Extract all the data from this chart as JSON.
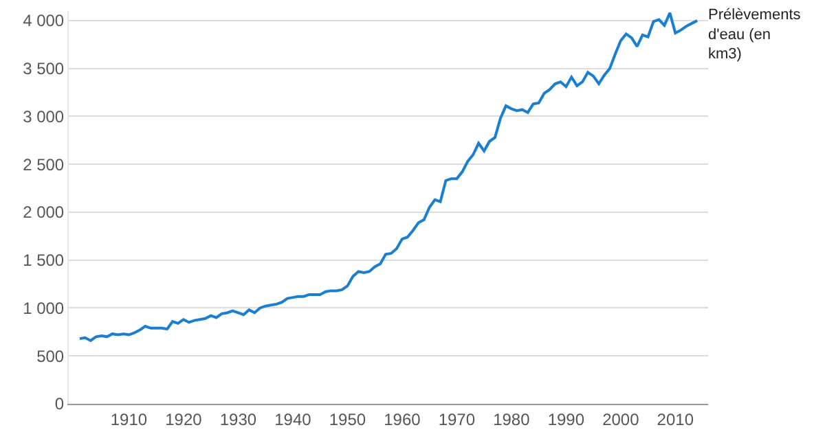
{
  "chart_data": {
    "type": "line",
    "x": [
      1901,
      1902,
      1903,
      1904,
      1905,
      1906,
      1907,
      1908,
      1909,
      1910,
      1911,
      1912,
      1913,
      1914,
      1915,
      1916,
      1917,
      1918,
      1919,
      1920,
      1921,
      1922,
      1923,
      1924,
      1925,
      1926,
      1927,
      1928,
      1929,
      1930,
      1931,
      1932,
      1933,
      1934,
      1935,
      1936,
      1937,
      1938,
      1939,
      1940,
      1941,
      1942,
      1943,
      1944,
      1945,
      1946,
      1947,
      1948,
      1949,
      1950,
      1951,
      1952,
      1953,
      1954,
      1955,
      1956,
      1957,
      1958,
      1959,
      1960,
      1961,
      1962,
      1963,
      1964,
      1965,
      1966,
      1967,
      1968,
      1969,
      1970,
      1971,
      1972,
      1973,
      1974,
      1975,
      1976,
      1977,
      1978,
      1979,
      1980,
      1981,
      1982,
      1983,
      1984,
      1985,
      1986,
      1987,
      1988,
      1989,
      1990,
      1991,
      1992,
      1993,
      1994,
      1995,
      1996,
      1997,
      1998,
      1999,
      2000,
      2001,
      2002,
      2003,
      2004,
      2005,
      2006,
      2007,
      2008,
      2009,
      2010,
      2011,
      2012,
      2013,
      2014
    ],
    "series": [
      {
        "name": "Prélèvements d'eau (en km3)",
        "color": "#1a7fd0",
        "values": [
          680,
          690,
          660,
          700,
          710,
          700,
          730,
          720,
          730,
          720,
          740,
          770,
          810,
          790,
          790,
          790,
          780,
          860,
          840,
          880,
          850,
          870,
          880,
          890,
          920,
          900,
          940,
          950,
          970,
          950,
          930,
          980,
          950,
          1000,
          1020,
          1030,
          1040,
          1060,
          1100,
          1110,
          1120,
          1120,
          1140,
          1140,
          1140,
          1170,
          1180,
          1180,
          1190,
          1230,
          1330,
          1380,
          1370,
          1380,
          1430,
          1460,
          1560,
          1570,
          1620,
          1720,
          1740,
          1810,
          1890,
          1920,
          2050,
          2130,
          2110,
          2330,
          2350,
          2350,
          2420,
          2530,
          2600,
          2720,
          2640,
          2740,
          2780,
          2980,
          3110,
          3080,
          3060,
          3070,
          3040,
          3130,
          3140,
          3240,
          3280,
          3340,
          3360,
          3310,
          3410,
          3320,
          3360,
          3460,
          3420,
          3340,
          3430,
          3500,
          3650,
          3790,
          3860,
          3820,
          3730,
          3850,
          3830,
          3990,
          4010,
          3950,
          4080,
          3870,
          3900,
          3940,
          3970,
          4000
        ]
      }
    ],
    "xlim": [
      1899,
      2016
    ],
    "xticks": [
      1910,
      1920,
      1930,
      1940,
      1950,
      1960,
      1970,
      1980,
      1990,
      2000,
      2010
    ],
    "ylim": [
      0,
      4100
    ],
    "yticks": [
      0,
      500,
      {
        "value": 1000,
        "label": "1 000"
      },
      {
        "value": 1500,
        "label": "1 500"
      },
      {
        "value": 2000,
        "label": "2 000"
      },
      {
        "value": 2500,
        "label": "2 500"
      },
      {
        "value": 3000,
        "label": "3 000"
      },
      {
        "value": 3500,
        "label": "3 500"
      },
      {
        "value": 4000,
        "label": "4 000"
      }
    ],
    "grid": "y",
    "legend": false,
    "marker": "none",
    "line_style": "solid"
  }
}
